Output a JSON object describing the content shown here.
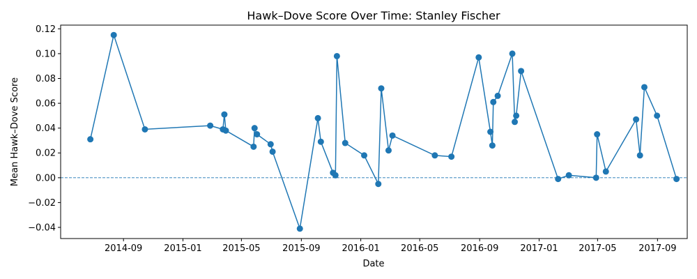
{
  "chart_data": {
    "type": "line",
    "title": "Hawk–Dove Score Over Time: Stanley Fischer",
    "xlabel": "Date",
    "ylabel": "Mean Hawk–Dove Score",
    "xlim": [
      "2014-04-25",
      "2017-11-01"
    ],
    "ylim": [
      -0.049,
      0.123
    ],
    "x_ticks": [
      "2014-09",
      "2015-01",
      "2015-05",
      "2015-09",
      "2016-01",
      "2016-05",
      "2016-09",
      "2017-01",
      "2017-05",
      "2017-09"
    ],
    "y_ticks": [
      -0.04,
      -0.02,
      0.0,
      0.02,
      0.04,
      0.06,
      0.08,
      0.1,
      0.12
    ],
    "y_tick_labels": [
      "−0.04",
      "−0.02",
      "0.00",
      "0.02",
      "0.04",
      "0.06",
      "0.08",
      "0.10",
      "0.12"
    ],
    "reference_line": 0.0,
    "grid": false,
    "color": "#1f77b4",
    "series": [
      {
        "x": [
          "2014-06-25",
          "2014-08-12",
          "2014-10-15",
          "2015-02-26",
          "2015-03-24",
          "2015-03-27",
          "2015-03-30",
          "2015-05-26",
          "2015-05-28",
          "2015-06-02",
          "2015-06-30",
          "2015-07-04",
          "2015-08-29",
          "2015-10-05",
          "2015-10-11",
          "2015-11-05",
          "2015-11-10",
          "2015-11-13",
          "2015-11-30",
          "2016-01-08",
          "2016-02-06",
          "2016-02-12",
          "2016-02-27",
          "2016-03-06",
          "2016-06-01",
          "2016-07-05",
          "2016-08-30",
          "2016-09-23",
          "2016-09-27",
          "2016-09-29",
          "2016-10-08",
          "2016-11-07",
          "2016-11-12",
          "2016-11-15",
          "2016-11-25",
          "2017-02-09",
          "2017-03-03",
          "2017-04-28",
          "2017-04-30",
          "2017-05-18",
          "2017-07-19",
          "2017-07-27",
          "2017-08-05",
          "2017-08-31",
          "2017-10-10"
        ],
        "y": [
          0.031,
          0.115,
          0.039,
          0.042,
          0.039,
          0.051,
          0.038,
          0.025,
          0.04,
          0.035,
          0.027,
          0.021,
          -0.041,
          0.048,
          0.029,
          0.004,
          0.002,
          0.098,
          0.028,
          0.018,
          -0.005,
          0.072,
          0.022,
          0.034,
          0.018,
          0.017,
          0.097,
          0.037,
          0.026,
          0.061,
          0.066,
          0.1,
          0.045,
          0.05,
          0.086,
          -0.001,
          0.002,
          0.0,
          0.035,
          0.005,
          0.047,
          0.018,
          0.073,
          0.05,
          -0.001
        ]
      }
    ]
  }
}
